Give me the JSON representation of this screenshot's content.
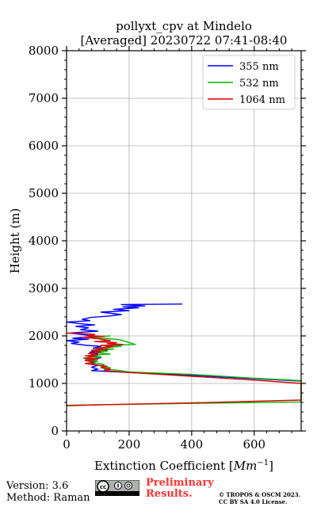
{
  "chart_data": {
    "type": "line",
    "title": [
      "pollyxt_cpv at Mindelo",
      "[Averaged] 20230722 07:41-08:40"
    ],
    "xlabel": "Extinction Coefficient [Mm⁻¹]",
    "xlabel_main": "Extinction Coefficient [",
    "xlabel_unit": "Mm",
    "xlabel_exp": "−1",
    "xlabel_close": "]",
    "ylabel": "Height (m)",
    "xlim": [
      0,
      750
    ],
    "ylim": [
      0,
      8000
    ],
    "x_ticks": [
      0,
      200,
      400,
      600
    ],
    "x_ticks_labels": [
      "0",
      "200",
      "400",
      "600"
    ],
    "y_ticks": [
      0,
      1000,
      2000,
      3000,
      4000,
      5000,
      6000,
      7000,
      8000
    ],
    "y_ticks_labels": [
      "0",
      "1000",
      "2000",
      "3000",
      "4000",
      "5000",
      "6000",
      "7000",
      "8000"
    ],
    "grid": true,
    "legend_position": "top-right",
    "series": [
      {
        "name": "355 nm",
        "color": "#0000ff",
        "points": [
          [
            370,
            2670
          ],
          [
            175,
            2660
          ],
          [
            250,
            2630
          ],
          [
            180,
            2610
          ],
          [
            230,
            2590
          ],
          [
            150,
            2560
          ],
          [
            200,
            2530
          ],
          [
            110,
            2500
          ],
          [
            175,
            2450
          ],
          [
            140,
            2420
          ],
          [
            80,
            2390
          ],
          [
            50,
            2350
          ],
          [
            75,
            2320
          ],
          [
            0,
            2290
          ],
          [
            40,
            2260
          ],
          [
            90,
            2230
          ],
          [
            30,
            2200
          ],
          [
            70,
            2170
          ],
          [
            45,
            2130
          ],
          [
            100,
            2100
          ],
          [
            10,
            2060
          ],
          [
            60,
            2020
          ],
          [
            90,
            1990
          ],
          [
            20,
            1950
          ],
          [
            70,
            1930
          ],
          [
            0,
            1900
          ],
          [
            40,
            1870
          ],
          [
            15,
            1840
          ],
          [
            65,
            1800
          ],
          [
            110,
            1780
          ],
          [
            85,
            1740
          ],
          [
            130,
            1700
          ],
          [
            75,
            1660
          ],
          [
            100,
            1620
          ],
          [
            80,
            1580
          ],
          [
            110,
            1540
          ],
          [
            70,
            1500
          ],
          [
            90,
            1460
          ],
          [
            80,
            1420
          ],
          [
            100,
            1380
          ],
          [
            80,
            1340
          ],
          [
            100,
            1300
          ],
          [
            80,
            1270
          ],
          [
            200,
            1230
          ],
          [
            400,
            1170
          ],
          [
            600,
            1100
          ],
          [
            750,
            1050
          ]
        ]
      },
      {
        "name": "532 nm",
        "color": "#00bb00",
        "points": [
          [
            140,
            2000
          ],
          [
            60,
            1970
          ],
          [
            120,
            1950
          ],
          [
            170,
            1920
          ],
          [
            220,
            1820
          ],
          [
            130,
            1800
          ],
          [
            175,
            1780
          ],
          [
            110,
            1750
          ],
          [
            150,
            1720
          ],
          [
            80,
            1700
          ],
          [
            130,
            1680
          ],
          [
            90,
            1650
          ],
          [
            140,
            1620
          ],
          [
            70,
            1590
          ],
          [
            110,
            1560
          ],
          [
            90,
            1530
          ],
          [
            60,
            1500
          ],
          [
            100,
            1470
          ],
          [
            80,
            1440
          ],
          [
            120,
            1400
          ],
          [
            110,
            1360
          ],
          [
            140,
            1330
          ],
          [
            120,
            1300
          ],
          [
            160,
            1280
          ],
          [
            200,
            1240
          ],
          [
            400,
            1190
          ],
          [
            600,
            1110
          ],
          [
            750,
            1060
          ],
          [
            750,
            610
          ],
          [
            400,
            580
          ],
          [
            100,
            550
          ],
          [
            0,
            540
          ]
        ]
      },
      {
        "name": "1064 nm",
        "color": "#dd0000",
        "points": [
          [
            0,
            2060
          ],
          [
            40,
            2050
          ],
          [
            90,
            2030
          ],
          [
            70,
            2010
          ],
          [
            120,
            1990
          ],
          [
            50,
            1970
          ],
          [
            100,
            1940
          ],
          [
            140,
            1900
          ],
          [
            90,
            1880
          ],
          [
            160,
            1860
          ],
          [
            130,
            1840
          ],
          [
            180,
            1820
          ],
          [
            110,
            1800
          ],
          [
            150,
            1770
          ],
          [
            90,
            1740
          ],
          [
            130,
            1710
          ],
          [
            80,
            1690
          ],
          [
            110,
            1660
          ],
          [
            70,
            1630
          ],
          [
            100,
            1600
          ],
          [
            60,
            1580
          ],
          [
            90,
            1560
          ],
          [
            55,
            1530
          ],
          [
            100,
            1510
          ],
          [
            60,
            1480
          ],
          [
            90,
            1450
          ],
          [
            60,
            1420
          ],
          [
            80,
            1400
          ],
          [
            130,
            1360
          ],
          [
            110,
            1330
          ],
          [
            140,
            1300
          ],
          [
            120,
            1270
          ],
          [
            200,
            1230
          ],
          [
            400,
            1150
          ],
          [
            600,
            1070
          ],
          [
            750,
            1000
          ],
          [
            750,
            650
          ],
          [
            400,
            590
          ],
          [
            100,
            550
          ],
          [
            0,
            530
          ]
        ]
      }
    ]
  },
  "footer": {
    "version": "Version: 3.6",
    "method": "Method: Raman",
    "preliminary_line1": "Preliminary",
    "preliminary_line2": "Results.",
    "copyright_line1": "© TROPOS & OSCM 2023.",
    "copyright_line2": "CC BY SA 4.0 License.",
    "license_badge": "cc-by-sa-icon"
  },
  "colors": {
    "grid": "#b0b0b0",
    "preliminary": "#ff3333"
  }
}
